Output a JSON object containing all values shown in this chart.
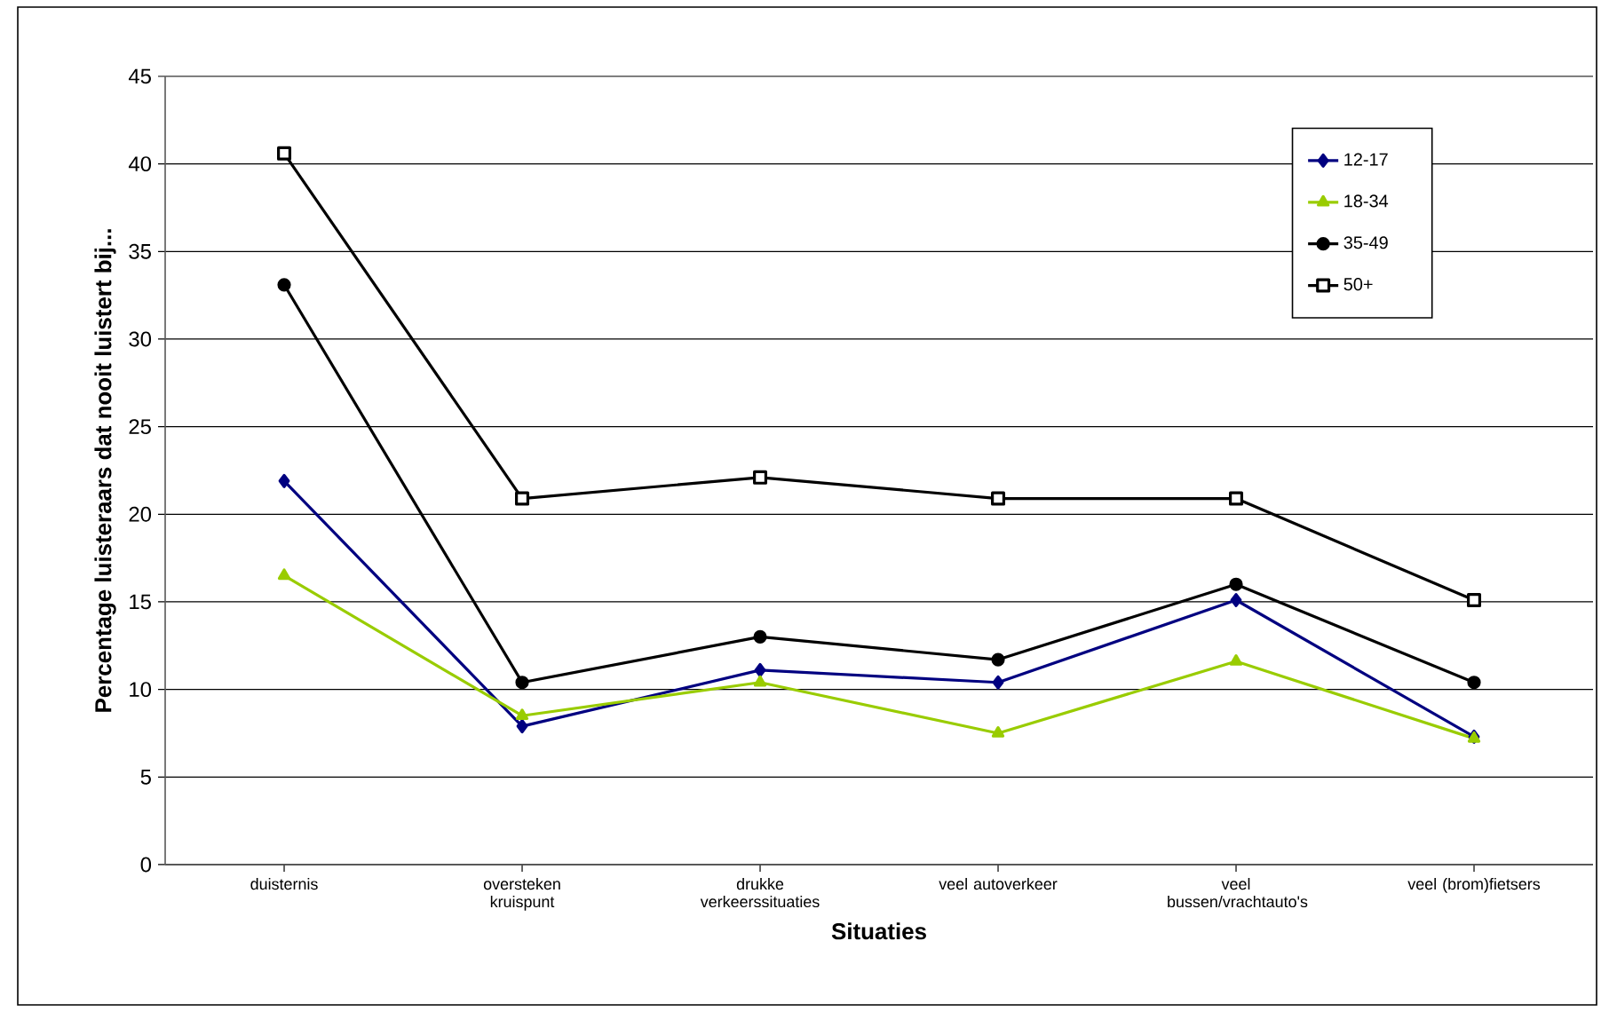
{
  "chart_data": {
    "type": "line",
    "xlabel": "Situaties",
    "ylabel": "Percentage luisteraars dat nooit luistert bij...",
    "categories": [
      "duisternis",
      "oversteken kruispunt",
      "drukke verkeerssituaties",
      "veel autoverkeer",
      "veel bussen/vrachtauto's",
      "veel (brom)fietsers"
    ],
    "series": [
      {
        "name": "12-17",
        "color": "#000080",
        "marker": "diamond",
        "values": [
          21.9,
          7.9,
          11.1,
          10.4,
          15.1,
          7.3
        ]
      },
      {
        "name": "18-34",
        "color": "#99cc00",
        "marker": "triangle",
        "values": [
          16.5,
          8.5,
          10.4,
          7.5,
          11.6,
          7.2
        ]
      },
      {
        "name": "35-49",
        "color": "#000000",
        "marker": "circle",
        "values": [
          33.1,
          10.4,
          13.0,
          11.7,
          16.0,
          10.4
        ]
      },
      {
        "name": "50+",
        "color": "#000000",
        "marker": "square",
        "values": [
          40.6,
          20.9,
          22.1,
          20.9,
          20.9,
          15.1
        ]
      }
    ],
    "ylim": [
      0,
      45
    ],
    "yticks": [
      0,
      5,
      10,
      15,
      20,
      25,
      30,
      35,
      40,
      45
    ],
    "grid": "y",
    "legend": "top right"
  }
}
